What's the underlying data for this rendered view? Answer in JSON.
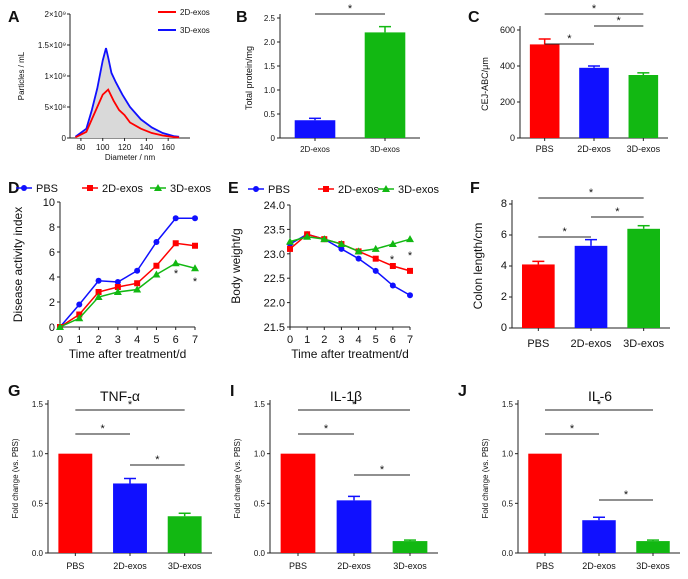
{
  "figure": {
    "panel_letters": [
      "A",
      "B",
      "C",
      "D",
      "E",
      "F",
      "G",
      "I",
      "J"
    ],
    "colors": {
      "pbs": "#ff0000",
      "exos2d": "#1010ff",
      "exos3d": "#12b812",
      "fill_gray": "#d9d9d9"
    }
  },
  "chart_data": [
    {
      "panel": "A",
      "type": "line",
      "xlabel": "Diameter / nm",
      "ylabel": "Particles / mL",
      "x_ticks": [
        "80",
        "100",
        "120",
        "140",
        "160"
      ],
      "y_ticks": [
        "0",
        "5×10⁸",
        "1×10⁹",
        "1.5×10⁹",
        "2×10⁹"
      ],
      "xlim": [
        70,
        180
      ],
      "ylim": [
        0,
        2000000000
      ],
      "legend": [
        "2D-exos",
        "3D-exos"
      ],
      "legend_position": "top-right",
      "series": [
        {
          "name": "3D-exos",
          "x": [
            75,
            85,
            90,
            95,
            100,
            103,
            105,
            108,
            112,
            118,
            125,
            135,
            145,
            155,
            165,
            170
          ],
          "values": [
            20000000,
            150000000,
            450000000,
            800000000,
            1250000000,
            1450000000,
            1300000000,
            1050000000,
            900000000,
            700000000,
            500000000,
            300000000,
            170000000,
            80000000,
            30000000,
            20000000
          ]
        },
        {
          "name": "2D-exos",
          "x": [
            75,
            85,
            90,
            95,
            100,
            105,
            110,
            115,
            120,
            125,
            135,
            145,
            155,
            165,
            170
          ],
          "values": [
            10000000,
            100000000,
            300000000,
            500000000,
            700000000,
            780000000,
            600000000,
            450000000,
            370000000,
            250000000,
            150000000,
            80000000,
            40000000,
            15000000,
            10000000
          ]
        }
      ]
    },
    {
      "panel": "B",
      "type": "bar",
      "categories": [
        "2D-exos",
        "3D-exos"
      ],
      "values": [
        0.37,
        2.2
      ],
      "errors": [
        0.04,
        0.12
      ],
      "ylabel": "Total protein/mg",
      "ylim": [
        0,
        2.5
      ],
      "y_ticks": [
        "0",
        "0.5",
        "1.0",
        "1.5",
        "2.0",
        "2.5"
      ],
      "significance": [
        {
          "a": 0,
          "b": 1,
          "label": "*"
        }
      ]
    },
    {
      "panel": "C",
      "type": "bar",
      "categories": [
        "PBS",
        "2D-exos",
        "3D-exos"
      ],
      "values": [
        520,
        390,
        350
      ],
      "errors": [
        30,
        10,
        12
      ],
      "ylabel": "CEJ-ABC/μm",
      "ylim": [
        0,
        600
      ],
      "y_ticks": [
        "0",
        "200",
        "400",
        "600"
      ],
      "significance": [
        {
          "a": 0,
          "b": 1,
          "label": "*"
        },
        {
          "a": 1,
          "b": 2,
          "label": "*"
        },
        {
          "a": 0,
          "b": 2,
          "label": "*"
        }
      ]
    },
    {
      "panel": "D",
      "type": "line",
      "x": [
        0,
        1,
        2,
        3,
        4,
        5,
        6,
        7
      ],
      "x_ticks": [
        "0",
        "1",
        "2",
        "3",
        "4",
        "5",
        "6",
        "7"
      ],
      "y_ticks": [
        "0",
        "2",
        "4",
        "6",
        "8",
        "10"
      ],
      "xlabel": "Time after treatment/d",
      "ylabel": "Disease activity index",
      "ylim": [
        0,
        10
      ],
      "legend": [
        "PBS",
        "2D-exos",
        "3D-exos"
      ],
      "legend_position": "top",
      "series": [
        {
          "name": "PBS",
          "values": [
            0,
            1.8,
            3.7,
            3.6,
            4.5,
            6.8,
            8.7,
            8.7
          ]
        },
        {
          "name": "2D-exos",
          "values": [
            0,
            1.0,
            2.8,
            3.2,
            3.5,
            4.9,
            6.7,
            6.5
          ]
        },
        {
          "name": "3D-exos",
          "values": [
            0,
            0.7,
            2.4,
            2.8,
            3.0,
            4.2,
            5.1,
            4.7
          ]
        }
      ],
      "annotations": [
        "*",
        "*"
      ]
    },
    {
      "panel": "E",
      "type": "line",
      "x": [
        0,
        1,
        2,
        3,
        4,
        5,
        6,
        7
      ],
      "x_ticks": [
        "0",
        "1",
        "2",
        "3",
        "4",
        "5",
        "6",
        "7"
      ],
      "y_ticks": [
        "21.5",
        "22.0",
        "22.5",
        "23.0",
        "23.5",
        "24.0"
      ],
      "xlabel": "Time after treatment/d",
      "ylabel": "Body weight/g",
      "ylim": [
        21.5,
        24.0
      ],
      "legend": [
        "PBS",
        "2D-exos",
        "3D-exos"
      ],
      "legend_position": "top",
      "series": [
        {
          "name": "PBS",
          "values": [
            23.2,
            23.4,
            23.3,
            23.1,
            22.9,
            22.65,
            22.35,
            22.15
          ]
        },
        {
          "name": "2D-exos",
          "values": [
            23.1,
            23.4,
            23.3,
            23.2,
            23.05,
            22.9,
            22.75,
            22.65
          ]
        },
        {
          "name": "3D-exos",
          "values": [
            23.25,
            23.35,
            23.3,
            23.2,
            23.05,
            23.1,
            23.2,
            23.3
          ]
        }
      ],
      "annotations": [
        "*",
        "*"
      ]
    },
    {
      "panel": "F",
      "type": "bar",
      "categories": [
        "PBS",
        "2D-exos",
        "3D-exos"
      ],
      "values": [
        4.1,
        5.3,
        6.4
      ],
      "errors": [
        0.2,
        0.4,
        0.2
      ],
      "ylabel": "Colon length/cm",
      "ylim": [
        0,
        8
      ],
      "y_ticks": [
        "0",
        "2",
        "4",
        "6",
        "8"
      ],
      "significance": [
        {
          "a": 0,
          "b": 1,
          "label": "*"
        },
        {
          "a": 1,
          "b": 2,
          "label": "*"
        },
        {
          "a": 0,
          "b": 2,
          "label": "*"
        }
      ]
    },
    {
      "panel": "G",
      "type": "bar",
      "title": "TNF-α",
      "categories": [
        "PBS",
        "2D-exos",
        "3D-exos"
      ],
      "values": [
        1.0,
        0.7,
        0.37
      ],
      "errors": [
        0,
        0.05,
        0.03
      ],
      "ylabel": "Fold change (vs. PBS)",
      "ylim": [
        0,
        1.5
      ],
      "y_ticks": [
        "0.0",
        "0.5",
        "1.0",
        "1.5"
      ],
      "significance": [
        {
          "a": 0,
          "b": 1,
          "label": "*"
        },
        {
          "a": 1,
          "b": 2,
          "label": "*"
        },
        {
          "a": 0,
          "b": 2,
          "label": "*"
        }
      ]
    },
    {
      "panel": "I",
      "type": "bar",
      "title": "IL-1β",
      "categories": [
        "PBS",
        "2D-exos",
        "3D-exos"
      ],
      "values": [
        1.0,
        0.53,
        0.12
      ],
      "errors": [
        0,
        0.04,
        0.01
      ],
      "ylabel": "Fold change (vs. PBS)",
      "ylim": [
        0,
        1.5
      ],
      "y_ticks": [
        "0.0",
        "0.5",
        "1.0",
        "1.5"
      ],
      "significance": [
        {
          "a": 0,
          "b": 1,
          "label": "*"
        },
        {
          "a": 1,
          "b": 2,
          "label": "*"
        },
        {
          "a": 0,
          "b": 2,
          "label": "*"
        }
      ]
    },
    {
      "panel": "J",
      "type": "bar",
      "title": "IL-6",
      "categories": [
        "PBS",
        "2D-exos",
        "3D-exos"
      ],
      "values": [
        1.0,
        0.33,
        0.12
      ],
      "errors": [
        0,
        0.03,
        0.01
      ],
      "ylabel": "Fold change (vs. PBS)",
      "ylim": [
        0,
        1.5
      ],
      "y_ticks": [
        "0.0",
        "0.5",
        "1.0",
        "1.5"
      ],
      "significance": [
        {
          "a": 0,
          "b": 1,
          "label": "*"
        },
        {
          "a": 1,
          "b": 2,
          "label": "*"
        },
        {
          "a": 0,
          "b": 2,
          "label": "*"
        }
      ]
    }
  ]
}
